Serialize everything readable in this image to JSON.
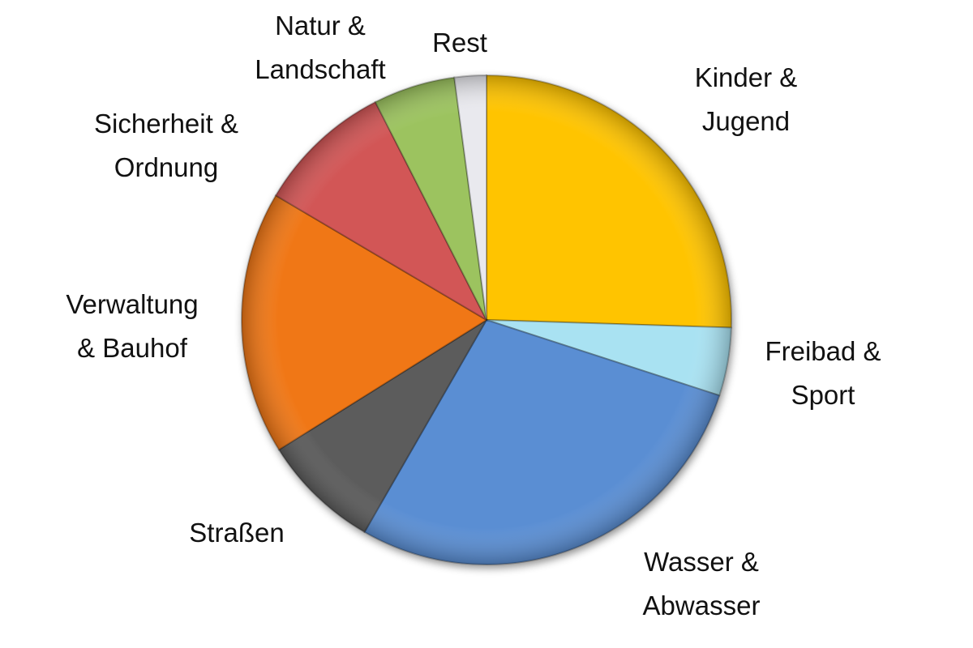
{
  "chart_data": {
    "type": "pie",
    "categories": [
      [
        "Kinder &",
        "Jugend"
      ],
      [
        "Freibad &",
        "Sport"
      ],
      [
        "Wasser &",
        "Abwasser"
      ],
      [
        "Straßen"
      ],
      [
        "Verwaltung",
        "& Bauhof"
      ],
      [
        "Sicherheit &",
        "Ordnung"
      ],
      [
        "Natur &",
        "Landschaft"
      ],
      [
        "Rest"
      ]
    ],
    "values": [
      25.5,
      4.5,
      28.3,
      7.8,
      17.4,
      9,
      5.4,
      2.1
    ],
    "colors": [
      "#ffc400",
      "#a9e2f2",
      "#5a8ed3",
      "#5c5c5c",
      "#f07716",
      "#d25757",
      "#9cc35e",
      "#e9e9ee"
    ]
  }
}
